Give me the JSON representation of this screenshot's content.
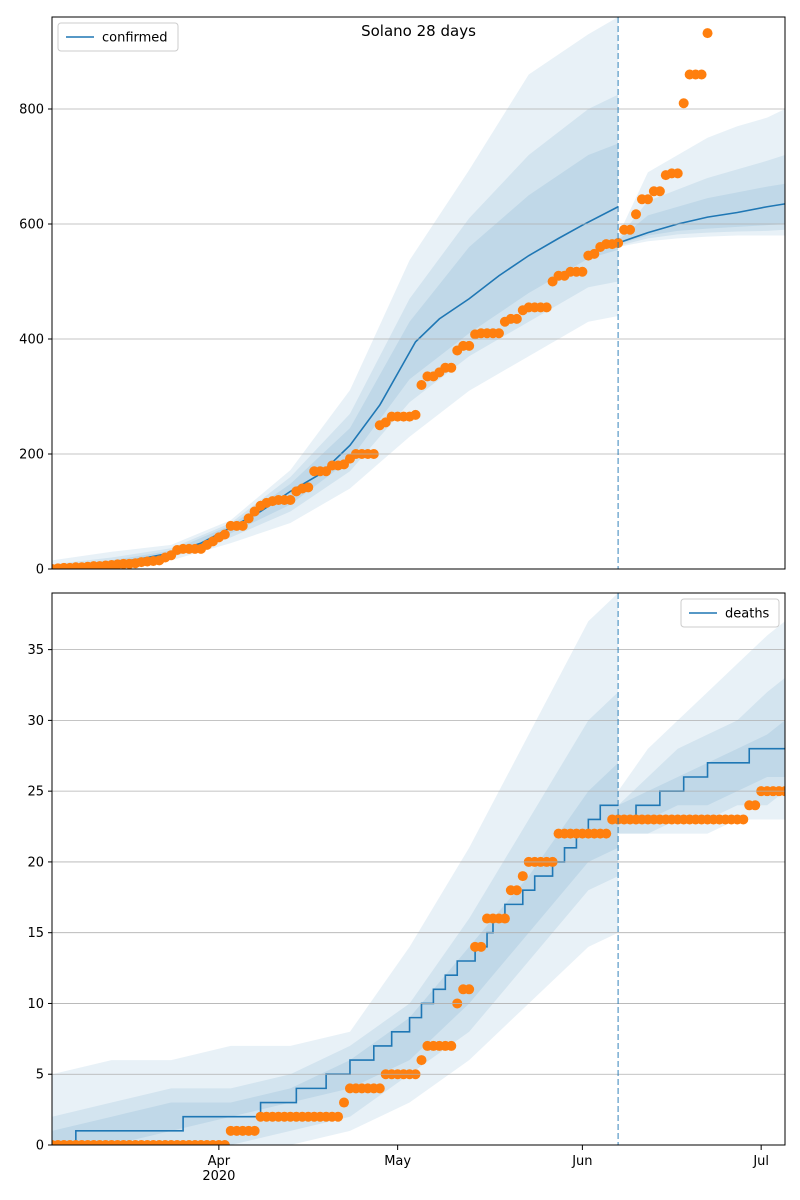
{
  "chart_data": [
    {
      "type": "line",
      "title": "Solano 28 days",
      "xlim": [
        0,
        123
      ],
      "ylim": [
        0,
        960
      ],
      "yticks": [
        0,
        200,
        400,
        600,
        800
      ],
      "grid": true,
      "legend_loc": "upper left",
      "vline_x": 95,
      "vline_color": "#1f77b4",
      "band_opacity": 0.1,
      "bands": [
        {
          "color": "#1f77b4",
          "x": [
            0,
            10,
            20,
            30,
            40,
            50,
            60,
            70,
            80,
            90,
            95
          ],
          "lower": [
            0,
            3,
            15,
            45,
            80,
            140,
            230,
            310,
            370,
            430,
            440
          ],
          "upper": [
            15,
            30,
            42,
            85,
            172,
            311,
            537,
            694,
            860,
            930,
            960
          ]
        },
        {
          "color": "#1f77b4",
          "x": [
            0,
            10,
            20,
            30,
            40,
            50,
            60,
            70,
            80,
            90,
            95
          ],
          "lower": [
            0,
            5,
            20,
            55,
            100,
            170,
            290,
            370,
            430,
            490,
            500
          ],
          "upper": [
            8,
            20,
            36,
            80,
            160,
            270,
            470,
            610,
            720,
            800,
            825
          ]
        },
        {
          "color": "#1f77b4",
          "x": [
            0,
            10,
            20,
            30,
            40,
            50,
            60,
            70,
            80,
            90,
            95
          ],
          "lower": [
            0,
            6,
            24,
            62,
            112,
            190,
            330,
            410,
            480,
            540,
            555
          ],
          "upper": [
            4,
            15,
            32,
            76,
            148,
            245,
            430,
            560,
            650,
            720,
            740
          ]
        },
        {
          "color": "#1f77b4",
          "x": [
            95,
            100,
            105,
            110,
            115,
            120,
            123
          ],
          "lower": [
            560,
            570,
            575,
            578,
            580,
            580,
            580
          ],
          "upper": [
            580,
            690,
            720,
            750,
            770,
            785,
            800
          ]
        },
        {
          "color": "#1f77b4",
          "x": [
            95,
            100,
            105,
            110,
            115,
            120,
            123
          ],
          "lower": [
            562,
            575,
            582,
            585,
            587,
            588,
            590
          ],
          "upper": [
            575,
            640,
            660,
            680,
            695,
            710,
            720
          ]
        },
        {
          "color": "#1f77b4",
          "x": [
            95,
            100,
            105,
            110,
            115,
            120,
            123
          ],
          "lower": [
            565,
            580,
            588,
            592,
            595,
            598,
            600
          ],
          "upper": [
            572,
            615,
            630,
            645,
            655,
            665,
            670
          ]
        }
      ],
      "series": [
        {
          "type": "line",
          "name": "confirmed",
          "color": "#1f77b4",
          "x": [
            0,
            5,
            10,
            15,
            20,
            25,
            30,
            35,
            40,
            45,
            50,
            55,
            58,
            61,
            65,
            70,
            75,
            80,
            85,
            89,
            95
          ],
          "values": [
            0,
            5,
            10,
            18,
            28,
            45,
            72,
            100,
            135,
            165,
            215,
            285,
            340,
            395,
            435,
            470,
            510,
            545,
            575,
            598,
            630
          ]
        },
        {
          "type": "line",
          "color": "#1f77b4",
          "x": [
            95,
            100,
            105,
            110,
            115,
            120,
            123
          ],
          "values": [
            567,
            585,
            600,
            612,
            620,
            630,
            635
          ]
        },
        {
          "type": "scatter",
          "color": "#ff7f0e",
          "x": [
            0,
            1,
            2,
            3,
            4,
            5,
            6,
            7,
            8,
            9,
            10,
            11,
            12,
            13,
            14,
            15,
            16,
            17,
            18,
            19,
            20,
            21,
            22,
            23,
            24,
            25,
            26,
            27,
            28,
            29,
            30,
            31,
            32,
            33,
            34,
            35,
            36,
            37,
            38,
            39,
            40,
            41,
            42,
            43,
            44,
            45,
            46,
            47,
            48,
            49,
            50,
            51,
            52,
            53,
            54,
            55,
            56,
            57,
            58,
            59,
            60,
            61,
            62,
            63,
            64,
            65,
            66,
            67,
            68,
            69,
            70,
            71,
            72,
            73,
            74,
            75,
            76,
            77,
            78,
            79,
            80,
            81,
            82,
            83,
            84,
            85,
            86,
            87,
            88,
            89,
            90,
            91,
            92,
            93,
            94,
            95,
            96,
            97,
            98,
            99,
            100,
            101,
            102,
            103,
            104,
            105,
            106,
            107,
            108,
            109,
            110
          ],
          "values": [
            0,
            1,
            2,
            2,
            3,
            3,
            4,
            5,
            5,
            6,
            7,
            8,
            9,
            9,
            10,
            12,
            13,
            14,
            15,
            20,
            24,
            33,
            35,
            35,
            35,
            35,
            42,
            48,
            55,
            60,
            75,
            75,
            75,
            88,
            100,
            110,
            115,
            118,
            120,
            120,
            120,
            135,
            140,
            142,
            170,
            170,
            170,
            180,
            180,
            182,
            192,
            200,
            200,
            200,
            200,
            250,
            255,
            265,
            265,
            265,
            265,
            268,
            320,
            335,
            335,
            342,
            350,
            350,
            380,
            388,
            388,
            408,
            410,
            410,
            410,
            410,
            430,
            435,
            435,
            450,
            455,
            455,
            455,
            455,
            500,
            510,
            510,
            517,
            517,
            517,
            545,
            548,
            560,
            565,
            565,
            567,
            590,
            590,
            617,
            643,
            643,
            657,
            657,
            685,
            688,
            688,
            810,
            860,
            860,
            860,
            932
          ]
        }
      ]
    },
    {
      "type": "line",
      "xlim": [
        0,
        123
      ],
      "ylim": [
        0,
        39
      ],
      "yticks": [
        0,
        5,
        10,
        15,
        20,
        25,
        30,
        35
      ],
      "grid": true,
      "legend_loc": "upper right",
      "xticks": [
        {
          "value": 28,
          "label": "Apr\n2020"
        },
        {
          "value": 58,
          "label": "May"
        },
        {
          "value": 89,
          "label": "Jun"
        },
        {
          "value": 119,
          "label": "Jul"
        }
      ],
      "vline_x": 95,
      "vline_color": "#1f77b4",
      "band_opacity": 0.1,
      "bands": [
        {
          "color": "#1f77b4",
          "x": [
            0,
            10,
            20,
            30,
            40,
            50,
            60,
            70,
            80,
            90,
            95
          ],
          "lower": [
            0,
            0,
            0,
            0,
            0,
            1,
            3,
            6,
            10,
            14,
            15
          ],
          "upper": [
            5,
            6,
            6,
            7,
            7,
            8,
            14,
            21,
            29,
            37,
            39
          ]
        },
        {
          "color": "#1f77b4",
          "x": [
            0,
            10,
            20,
            30,
            40,
            50,
            60,
            70,
            80,
            90,
            95
          ],
          "lower": [
            0,
            0,
            0,
            0,
            1,
            2,
            5,
            8,
            13,
            18,
            19
          ],
          "upper": [
            2,
            3,
            4,
            4,
            5,
            7,
            10,
            16,
            23,
            30,
            32
          ]
        },
        {
          "color": "#1f77b4",
          "x": [
            0,
            10,
            20,
            30,
            40,
            50,
            60,
            70,
            80,
            90,
            95
          ],
          "lower": [
            0,
            0,
            1,
            2,
            3,
            4,
            6,
            10,
            15,
            20,
            21
          ],
          "upper": [
            1,
            2,
            3,
            3,
            4,
            6,
            9,
            14,
            19,
            25,
            27
          ]
        },
        {
          "color": "#1f77b4",
          "x": [
            95,
            100,
            105,
            110,
            115,
            120,
            123
          ],
          "lower": [
            22,
            22,
            22,
            22,
            23,
            23,
            23
          ],
          "upper": [
            25,
            28,
            30,
            32,
            34,
            36,
            37
          ]
        },
        {
          "color": "#1f77b4",
          "x": [
            95,
            100,
            105,
            110,
            115,
            120,
            123
          ],
          "lower": [
            22,
            22,
            23,
            23,
            24,
            24,
            25
          ],
          "upper": [
            24,
            26,
            28,
            29,
            30,
            32,
            33
          ]
        },
        {
          "color": "#1f77b4",
          "x": [
            95,
            100,
            105,
            110,
            115,
            120,
            123
          ],
          "lower": [
            23,
            23,
            24,
            24,
            25,
            26,
            26
          ],
          "upper": [
            24,
            25,
            26,
            27,
            28,
            29,
            30
          ]
        }
      ],
      "series": [
        {
          "type": "line",
          "step": true,
          "name": "deaths",
          "color": "#1f77b4",
          "x": [
            0,
            4,
            22,
            35,
            41,
            46,
            50,
            54,
            57,
            60,
            62,
            64,
            66,
            68,
            71,
            73,
            74,
            76,
            79,
            81,
            84,
            86,
            88,
            90,
            92,
            95
          ],
          "values": [
            0,
            1,
            2,
            3,
            4,
            5,
            6,
            7,
            8,
            9,
            10,
            11,
            12,
            13,
            14,
            15,
            16,
            17,
            18,
            19,
            20,
            21,
            22,
            23,
            24,
            24
          ]
        },
        {
          "type": "line",
          "step": true,
          "color": "#1f77b4",
          "x": [
            95,
            98,
            102,
            106,
            110,
            117,
            123
          ],
          "values": [
            23,
            24,
            25,
            26,
            27,
            28,
            28
          ]
        },
        {
          "type": "scatter",
          "color": "#ff7f0e",
          "x": [
            0,
            1,
            2,
            3,
            4,
            5,
            6,
            7,
            8,
            9,
            10,
            11,
            12,
            13,
            14,
            15,
            16,
            17,
            18,
            19,
            20,
            21,
            22,
            23,
            24,
            25,
            26,
            27,
            28,
            29,
            30,
            31,
            32,
            33,
            34,
            35,
            36,
            37,
            38,
            39,
            40,
            41,
            42,
            43,
            44,
            45,
            46,
            47,
            48,
            49,
            50,
            51,
            52,
            53,
            54,
            55,
            56,
            57,
            58,
            59,
            60,
            61,
            62,
            63,
            64,
            65,
            66,
            67,
            68,
            69,
            70,
            71,
            72,
            73,
            74,
            75,
            76,
            77,
            78,
            79,
            80,
            81,
            82,
            83,
            84,
            85,
            86,
            87,
            88,
            89,
            90,
            91,
            92,
            93,
            94,
            95,
            96,
            97,
            98,
            99,
            100,
            101,
            102,
            103,
            104,
            105,
            106,
            107,
            108,
            109,
            110,
            111,
            112,
            113,
            114,
            115,
            116,
            117,
            118,
            119,
            120,
            121,
            122,
            123
          ],
          "values": [
            0,
            0,
            0,
            0,
            0,
            0,
            0,
            0,
            0,
            0,
            0,
            0,
            0,
            0,
            0,
            0,
            0,
            0,
            0,
            0,
            0,
            0,
            0,
            0,
            0,
            0,
            0,
            0,
            0,
            0,
            1,
            1,
            1,
            1,
            1,
            2,
            2,
            2,
            2,
            2,
            2,
            2,
            2,
            2,
            2,
            2,
            2,
            2,
            2,
            3,
            4,
            4,
            4,
            4,
            4,
            4,
            5,
            5,
            5,
            5,
            5,
            5,
            6,
            7,
            7,
            7,
            7,
            7,
            10,
            11,
            11,
            14,
            14,
            16,
            16,
            16,
            16,
            18,
            18,
            19,
            20,
            20,
            20,
            20,
            20,
            22,
            22,
            22,
            22,
            22,
            22,
            22,
            22,
            22,
            23,
            23,
            23,
            23,
            23,
            23,
            23,
            23,
            23,
            23,
            23,
            23,
            23,
            23,
            23,
            23,
            23,
            23,
            23,
            23,
            23,
            23,
            23,
            24,
            24,
            25,
            25,
            25,
            25,
            25
          ]
        }
      ]
    }
  ]
}
